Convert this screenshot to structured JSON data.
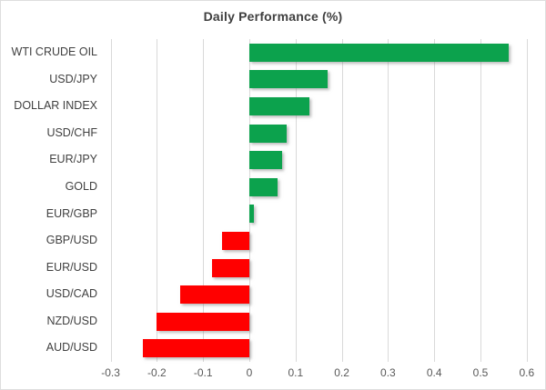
{
  "chart_data": {
    "type": "bar",
    "orientation": "horizontal",
    "title": "Daily Performance (%)",
    "categories": [
      "WTI CRUDE OIL",
      "USD/JPY",
      "DOLLAR INDEX",
      "USD/CHF",
      "EUR/JPY",
      "GOLD",
      "EUR/GBP",
      "GBP/USD",
      "EUR/USD",
      "USD/CAD",
      "NZD/USD",
      "AUD/USD"
    ],
    "values": [
      0.56,
      0.17,
      0.13,
      0.08,
      0.07,
      0.06,
      0.01,
      -0.06,
      -0.08,
      -0.15,
      -0.2,
      -0.23
    ],
    "xlim": [
      -0.315,
      0.62
    ],
    "x_ticks": [
      -0.3,
      -0.2,
      -0.1,
      0,
      0.1,
      0.2,
      0.3,
      0.4,
      0.5,
      0.6
    ],
    "x_tick_labels": [
      "-0.3",
      "-0.2",
      "-0.1",
      "0",
      "0.1",
      "0.2",
      "0.3",
      "0.4",
      "0.5",
      "0.6"
    ],
    "grid": true,
    "legend": "none",
    "colors": {
      "positive": "#0ca24d",
      "negative": "#ff0000",
      "gridline": "#d9d9d9",
      "title": "#3f3f3f",
      "category_labels": "#404040",
      "tick_labels": "#595959",
      "frame_border": "#dedede",
      "background": "#ffffff"
    }
  }
}
